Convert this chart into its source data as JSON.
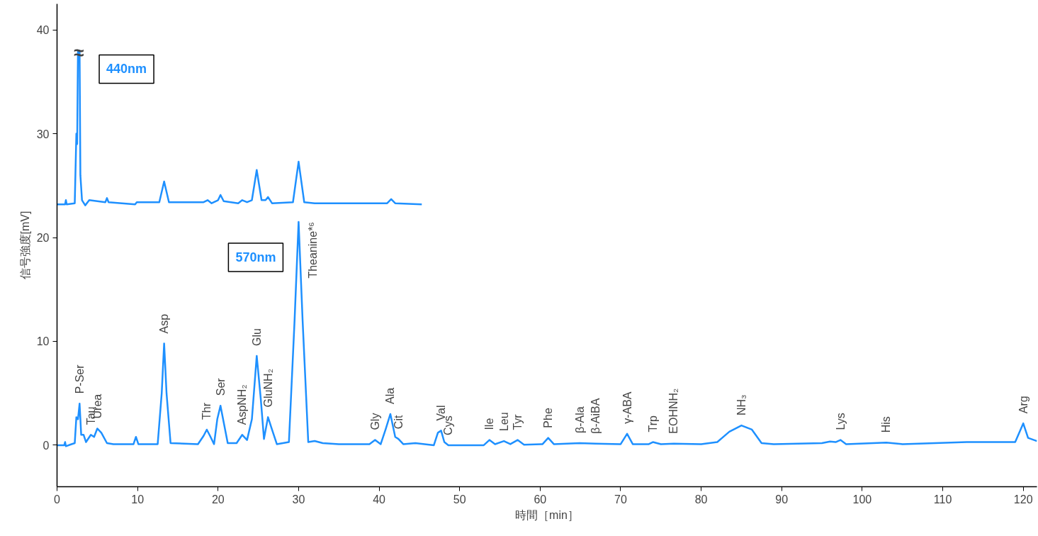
{
  "chart_data": {
    "type": "line",
    "xlabel": "時間［min］",
    "ylabel": "信号強度[mV]",
    "xlim": [
      0,
      121.7
    ],
    "ylim": [
      -4,
      42.5
    ],
    "xticks": [
      0,
      10,
      20,
      30,
      40,
      50,
      60,
      70,
      80,
      90,
      100,
      110,
      120
    ],
    "yticks": [
      0,
      10,
      20,
      30,
      40
    ],
    "grid": false,
    "series": [
      {
        "name": "440nm",
        "color": "#1e90ff",
        "x": [
          0,
          1,
          1.1,
          1.2,
          2.2,
          2.4,
          2.5,
          2.6,
          2.7,
          2.8,
          2.9,
          3.1,
          3.5,
          4,
          5,
          6,
          6.2,
          6.4,
          9.7,
          9.9,
          12.7,
          13.3,
          13.9,
          18.2,
          18.7,
          19.2,
          20.0,
          20.3,
          20.7,
          22.5,
          23,
          23.6,
          24.2,
          24.8,
          25.4,
          25.9,
          26.2,
          26.7,
          29.3,
          30.0,
          30.7,
          32,
          41,
          41.5,
          42,
          45.3
        ],
        "values": [
          23.2,
          23.2,
          23.6,
          23.2,
          23.3,
          30,
          29,
          38,
          38,
          38,
          26,
          23.6,
          23.1,
          23.6,
          23.5,
          23.4,
          23.8,
          23.4,
          23.2,
          23.4,
          23.4,
          25.4,
          23.4,
          23.4,
          23.6,
          23.3,
          23.6,
          24.1,
          23.5,
          23.3,
          23.6,
          23.4,
          23.6,
          26.5,
          23.6,
          23.6,
          23.9,
          23.3,
          23.4,
          27.3,
          23.4,
          23.3,
          23.3,
          23.7,
          23.3,
          23.2
        ]
      },
      {
        "name": "570nm",
        "color": "#1e90ff",
        "x": [
          0,
          0.9,
          1.0,
          1.1,
          1.8,
          2.2,
          2.4,
          2.6,
          2.8,
          3.0,
          3.3,
          3.6,
          4.2,
          4.6,
          5.0,
          5.5,
          6.2,
          7,
          9.5,
          9.8,
          10.1,
          12.5,
          13.0,
          13.3,
          13.6,
          14.1,
          17.5,
          18.2,
          18.6,
          19.0,
          19.5,
          19.9,
          20.3,
          20.7,
          21.2,
          22.3,
          23.0,
          23.6,
          24.2,
          24.8,
          25.3,
          25.7,
          26.2,
          26.7,
          27.3,
          28.8,
          29.5,
          30.0,
          30.5,
          31.2,
          32.0,
          33,
          35,
          38.8,
          39.5,
          40.2,
          40.8,
          41.4,
          42.0,
          42.4,
          43,
          44.5,
          46.8,
          47.3,
          47.7,
          48.1,
          48.6,
          53.0,
          53.7,
          54.4,
          55.5,
          56.3,
          57.2,
          58,
          60.3,
          61.0,
          61.7,
          64.9,
          66.9,
          70.0,
          70.8,
          71.5,
          73.5,
          74,
          75,
          76.6,
          80,
          82,
          83.5,
          85,
          86.3,
          87.5,
          89,
          95,
          96,
          96.7,
          97.3,
          98,
          103,
          105,
          113,
          119,
          120,
          120.6,
          121.7
        ],
        "values": [
          0,
          0,
          0.3,
          -0.1,
          0.1,
          0.2,
          2.7,
          2.5,
          4.0,
          1.0,
          1.0,
          0.3,
          1.0,
          0.8,
          1.6,
          1.2,
          0.2,
          0.1,
          0.1,
          0.8,
          0.1,
          0.1,
          5,
          9.8,
          5,
          0.2,
          0.1,
          0.9,
          1.5,
          0.9,
          0.1,
          2.5,
          3.8,
          2.2,
          0.2,
          0.2,
          1.0,
          0.5,
          2.5,
          8.6,
          4.5,
          0.6,
          2.7,
          1.5,
          0.1,
          0.3,
          12,
          21.5,
          12,
          0.3,
          0.4,
          0.2,
          0.1,
          0.1,
          0.5,
          0.1,
          1.5,
          3.0,
          0.8,
          0.6,
          0.1,
          0.2,
          0.0,
          1.2,
          1.4,
          0.3,
          0.0,
          0.0,
          0.5,
          0.1,
          0.4,
          0.1,
          0.5,
          0.05,
          0.1,
          0.7,
          0.1,
          0.2,
          0.15,
          0.1,
          1.1,
          0.1,
          0.1,
          0.3,
          0.1,
          0.15,
          0.1,
          0.3,
          1.3,
          1.9,
          1.5,
          0.2,
          0.1,
          0.2,
          0.35,
          0.3,
          0.5,
          0.1,
          0.25,
          0.1,
          0.3,
          0.3,
          2.1,
          0.7,
          0.4
        ]
      }
    ],
    "annotations": [
      {
        "text": "≈",
        "x": 2.7,
        "y": 37.8
      },
      {
        "text": "P-Ser",
        "x": 2.8,
        "y": 4.0
      },
      {
        "text": "Tau",
        "x": 4.2,
        "y": 1.0
      },
      {
        "text": "Urea",
        "x": 5.0,
        "y": 1.6
      },
      {
        "text": "Asp",
        "x": 13.3,
        "y": 9.8
      },
      {
        "text": "Thr",
        "x": 18.6,
        "y": 1.5
      },
      {
        "text": "Ser",
        "x": 20.3,
        "y": 3.8
      },
      {
        "text": "AspNH₂",
        "x": 23.0,
        "y": 1.0
      },
      {
        "text": "Glu",
        "x": 24.8,
        "y": 8.6
      },
      {
        "text": "GluNH₂",
        "x": 26.2,
        "y": 2.7
      },
      {
        "text": "Theanine*⁶",
        "x": 30.0,
        "y": 21.5
      },
      {
        "text": "Gly",
        "x": 39.5,
        "y": 0.5
      },
      {
        "text": "Ala",
        "x": 41.4,
        "y": 3.0
      },
      {
        "text": "Cit",
        "x": 42.4,
        "y": 0.6
      },
      {
        "text": "Val",
        "x": 47.7,
        "y": 1.4
      },
      {
        "text": "Cys",
        "x": 48.6,
        "y": 0.0
      },
      {
        "text": "Ile",
        "x": 53.7,
        "y": 0.5
      },
      {
        "text": "Leu",
        "x": 55.5,
        "y": 0.4
      },
      {
        "text": "Tyr",
        "x": 57.2,
        "y": 0.5
      },
      {
        "text": "Phe",
        "x": 61.0,
        "y": 0.7
      },
      {
        "text": "β-Ala",
        "x": 64.9,
        "y": 0.2
      },
      {
        "text": "β-AiBA",
        "x": 66.9,
        "y": 0.15
      },
      {
        "text": "γ-ABA",
        "x": 70.8,
        "y": 1.1
      },
      {
        "text": "Trp",
        "x": 74,
        "y": 0.3
      },
      {
        "text": "EOHNH₂",
        "x": 76.6,
        "y": 0.15
      },
      {
        "text": "NH₃",
        "x": 85,
        "y": 1.9
      },
      {
        "text": "Lys",
        "x": 97.3,
        "y": 0.5
      },
      {
        "text": "His",
        "x": 103,
        "y": 0.25
      },
      {
        "text": "Arg",
        "x": 120,
        "y": 2.1
      }
    ]
  }
}
